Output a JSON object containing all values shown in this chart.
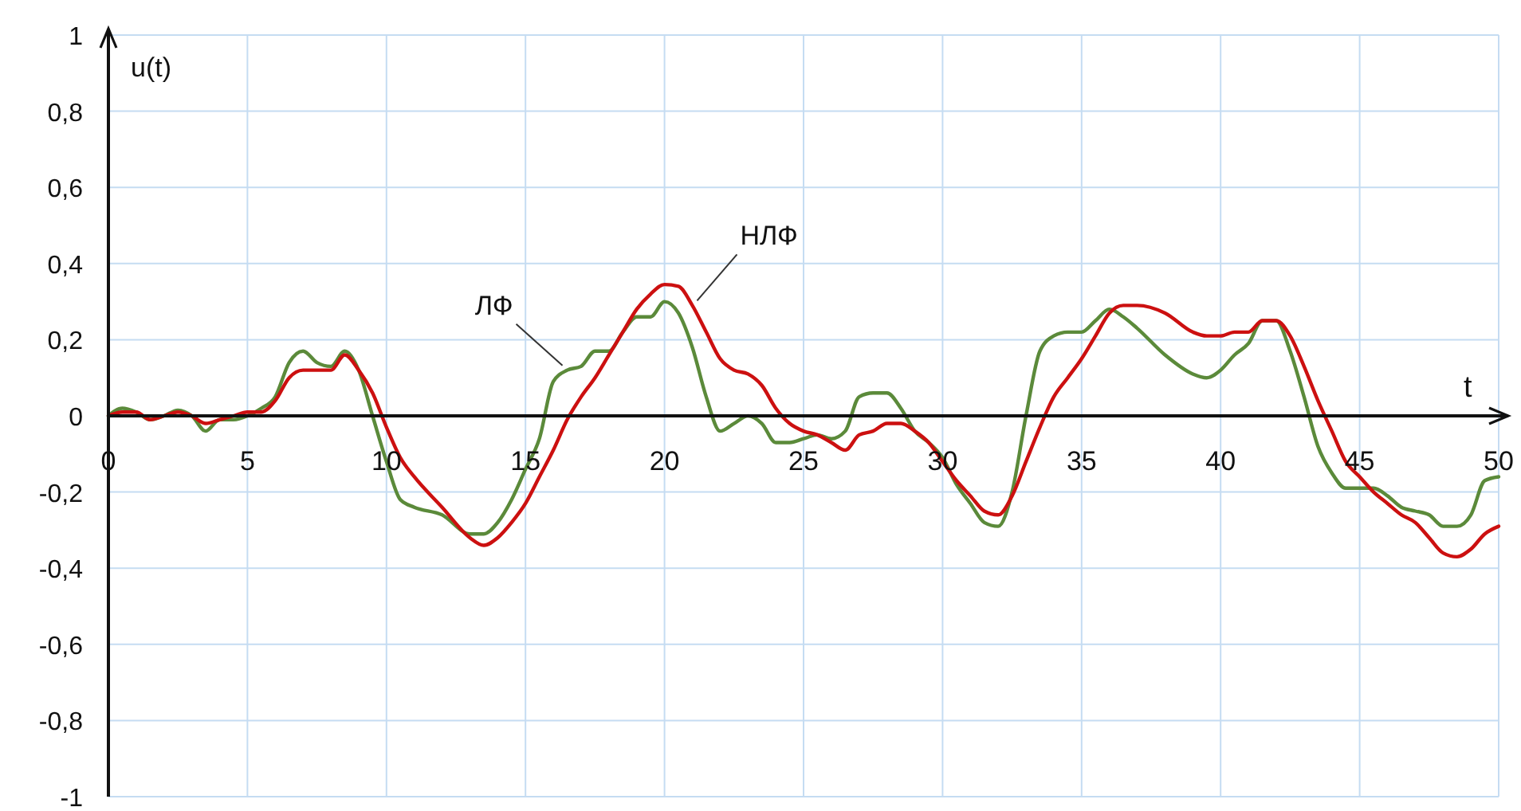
{
  "chart_data": {
    "type": "line",
    "xlabel": "t",
    "ylabel": "u(t)",
    "xlim": [
      0,
      50
    ],
    "ylim": [
      -1,
      1
    ],
    "xticks": [
      0,
      5,
      10,
      15,
      20,
      25,
      30,
      35,
      40,
      45,
      50
    ],
    "yticks": [
      -1,
      {
        "value": -0.8,
        "label": "-0,8"
      },
      {
        "value": -0.6,
        "label": "-0,6"
      },
      {
        "value": -0.4,
        "label": "-0,4"
      },
      {
        "value": -0.2,
        "label": "-0,2"
      },
      0,
      {
        "value": 0.2,
        "label": "0,2"
      },
      {
        "value": 0.4,
        "label": "0,4"
      },
      {
        "value": 0.6,
        "label": "0,6"
      },
      {
        "value": 0.8,
        "label": "0,8"
      },
      1
    ],
    "grid": true,
    "x": [
      0,
      0.5,
      1,
      1.5,
      2,
      2.5,
      3,
      3.5,
      4,
      4.5,
      5,
      5.5,
      6,
      6.5,
      7,
      7.5,
      8,
      8.5,
      9,
      9.5,
      10,
      10.5,
      11,
      12,
      13,
      13.5,
      14,
      14.5,
      15,
      15.5,
      16,
      16.5,
      17,
      17.5,
      18,
      18.5,
      19,
      19.5,
      20,
      20.5,
      21,
      21.5,
      22,
      22.5,
      23,
      23.5,
      24,
      24.5,
      25,
      25.5,
      26,
      26.5,
      27,
      27.5,
      28,
      28.5,
      29,
      29.5,
      30,
      30.5,
      31,
      31.5,
      32,
      32.5,
      33,
      33.5,
      34,
      34.5,
      35,
      35.5,
      36,
      36.5,
      37,
      38,
      39,
      39.5,
      40,
      40.5,
      41,
      41.5,
      42,
      42.5,
      43,
      43.5,
      44,
      44.5,
      45,
      45.5,
      46,
      46.5,
      47,
      47.5,
      48,
      48.5,
      49,
      49.5,
      50
    ],
    "series": [
      {
        "name": "ЛФ",
        "color": "#5b8a3a",
        "values": [
          0,
          0.02,
          0.01,
          -0.01,
          0,
          0.015,
          0,
          -0.04,
          -0.01,
          -0.01,
          0,
          0.02,
          0.05,
          0.14,
          0.17,
          0.14,
          0.13,
          0.17,
          0.12,
          0,
          -0.12,
          -0.22,
          -0.24,
          -0.26,
          -0.31,
          -0.31,
          -0.28,
          -0.22,
          -0.14,
          -0.06,
          0.09,
          0.12,
          0.13,
          0.17,
          0.17,
          0.22,
          0.26,
          0.26,
          0.3,
          0.27,
          0.18,
          0.05,
          -0.04,
          -0.02,
          0,
          -0.02,
          -0.07,
          -0.07,
          -0.06,
          -0.05,
          -0.06,
          -0.04,
          0.05,
          0.06,
          0.06,
          0.02,
          -0.04,
          -0.07,
          -0.11,
          -0.18,
          -0.23,
          -0.28,
          -0.29,
          -0.2,
          0,
          0.17,
          0.21,
          0.22,
          0.22,
          0.25,
          0.28,
          0.26,
          0.23,
          0.16,
          0.11,
          0.1,
          0.12,
          0.16,
          0.19,
          0.25,
          0.25,
          0.17,
          0.05,
          -0.08,
          -0.15,
          -0.19,
          -0.19,
          -0.19,
          -0.21,
          -0.24,
          -0.25,
          -0.26,
          -0.29,
          -0.29,
          -0.26,
          -0.17,
          -0.16
        ]
      },
      {
        "name": "НЛФ",
        "color": "#cc1010",
        "values": [
          0,
          0.01,
          0.01,
          -0.01,
          0,
          0.01,
          0,
          -0.02,
          -0.01,
          0,
          0.01,
          0.01,
          0.04,
          0.1,
          0.12,
          0.12,
          0.12,
          0.16,
          0.12,
          0.06,
          -0.03,
          -0.11,
          -0.16,
          -0.24,
          -0.32,
          -0.34,
          -0.32,
          -0.28,
          -0.23,
          -0.16,
          -0.09,
          -0.01,
          0.05,
          0.1,
          0.16,
          0.22,
          0.28,
          0.32,
          0.345,
          0.34,
          0.29,
          0.22,
          0.15,
          0.12,
          0.11,
          0.08,
          0.02,
          -0.02,
          -0.04,
          -0.05,
          -0.07,
          -0.09,
          -0.05,
          -0.04,
          -0.02,
          -0.02,
          -0.04,
          -0.07,
          -0.12,
          -0.17,
          -0.21,
          -0.25,
          -0.26,
          -0.21,
          -0.12,
          -0.03,
          0.05,
          0.1,
          0.15,
          0.21,
          0.27,
          0.29,
          0.29,
          0.27,
          0.22,
          0.21,
          0.21,
          0.22,
          0.22,
          0.25,
          0.25,
          0.21,
          0.13,
          0.04,
          -0.04,
          -0.12,
          -0.16,
          -0.2,
          -0.23,
          -0.26,
          -0.28,
          -0.32,
          -0.36,
          -0.37,
          -0.35,
          -0.31,
          -0.29
        ]
      }
    ]
  }
}
